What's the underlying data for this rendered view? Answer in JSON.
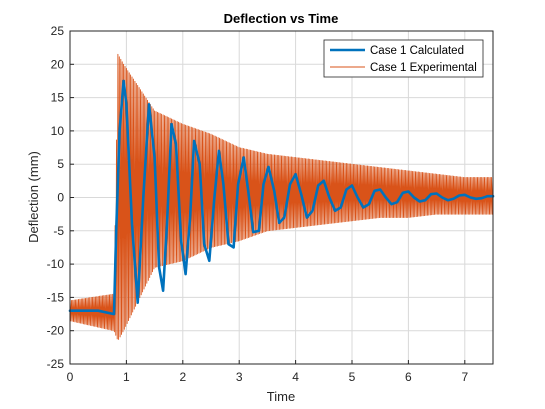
{
  "chart_data": {
    "type": "line",
    "title": "Deflection vs Time",
    "xlabel": "Time",
    "ylabel": "Deflection (mm)",
    "xlim": [
      0,
      7.5
    ],
    "ylim": [
      -25,
      25
    ],
    "xticks": [
      0,
      1,
      2,
      3,
      4,
      5,
      6,
      7
    ],
    "yticks": [
      -25,
      -20,
      -15,
      -10,
      -5,
      0,
      5,
      10,
      15,
      20,
      25
    ],
    "grid": true,
    "legend_position": "top-right",
    "series": [
      {
        "name": "Case 1 Calculated",
        "color": "#0072BD",
        "style": "thick",
        "x": [
          0,
          0.5,
          0.78,
          0.82,
          0.88,
          0.95,
          1.0,
          1.1,
          1.2,
          1.3,
          1.4,
          1.5,
          1.58,
          1.65,
          1.72,
          1.8,
          1.88,
          1.97,
          2.05,
          2.13,
          2.2,
          2.3,
          2.38,
          2.47,
          2.56,
          2.64,
          2.72,
          2.81,
          2.9,
          2.98,
          3.08,
          3.16,
          3.25,
          3.35,
          3.43,
          3.52,
          3.62,
          3.71,
          3.8,
          3.9,
          4.0,
          4.1,
          4.2,
          4.3,
          4.4,
          4.5,
          4.6,
          4.7,
          4.8,
          4.9,
          5.0,
          5.1,
          5.2,
          5.3,
          5.4,
          5.5,
          5.6,
          5.7,
          5.8,
          5.9,
          6.0,
          6.1,
          6.2,
          6.3,
          6.4,
          6.5,
          6.6,
          6.7,
          6.8,
          6.9,
          7.0,
          7.1,
          7.2,
          7.3,
          7.4,
          7.5
        ],
        "y": [
          -17,
          -17,
          -17.5,
          -5,
          10,
          17.5,
          14,
          -4,
          -15.8,
          0,
          14,
          6,
          -10.5,
          -14,
          -4,
          11,
          8,
          -6.5,
          -11.5,
          -3,
          8.5,
          5,
          -7,
          -9.5,
          0,
          7,
          2,
          -7,
          -7.5,
          2,
          6,
          1,
          -5.2,
          -5,
          2,
          4.6,
          1,
          -3.8,
          -3,
          2,
          3.5,
          0.5,
          -3,
          -2,
          1.8,
          2.5,
          0,
          -2,
          -1.5,
          1.2,
          1.8,
          0,
          -1.5,
          -1,
          1,
          1.2,
          0,
          -1,
          -0.7,
          0.7,
          0.9,
          0,
          -0.6,
          -0.4,
          0.5,
          0.6,
          0,
          -0.4,
          -0.2,
          0.3,
          0.4,
          0,
          -0.2,
          -0.1,
          0.2,
          0.2
        ]
      },
      {
        "name": "Case 1 Experimental",
        "color": "#D95319",
        "style": "thin",
        "x": [
          0,
          0.78,
          0.85,
          0.95,
          1.5,
          2.0,
          2.5,
          3.0,
          3.5,
          4.0,
          4.5,
          5.0,
          5.5,
          6.0,
          6.5,
          7.0,
          7.5
        ],
        "y_envelope_max": [
          -15.5,
          -14.5,
          21.5,
          20,
          13,
          11,
          9.5,
          7.5,
          6.5,
          6,
          5.5,
          5,
          4.5,
          4,
          3.5,
          3,
          3
        ],
        "y_envelope_min": [
          -18.5,
          -20,
          -21.5,
          -20,
          -10.5,
          -9.5,
          -7.5,
          -6.5,
          -5,
          -4.5,
          -4,
          -3.5,
          -3,
          -3,
          -2.5,
          -2.5,
          -2.5
        ]
      }
    ]
  }
}
